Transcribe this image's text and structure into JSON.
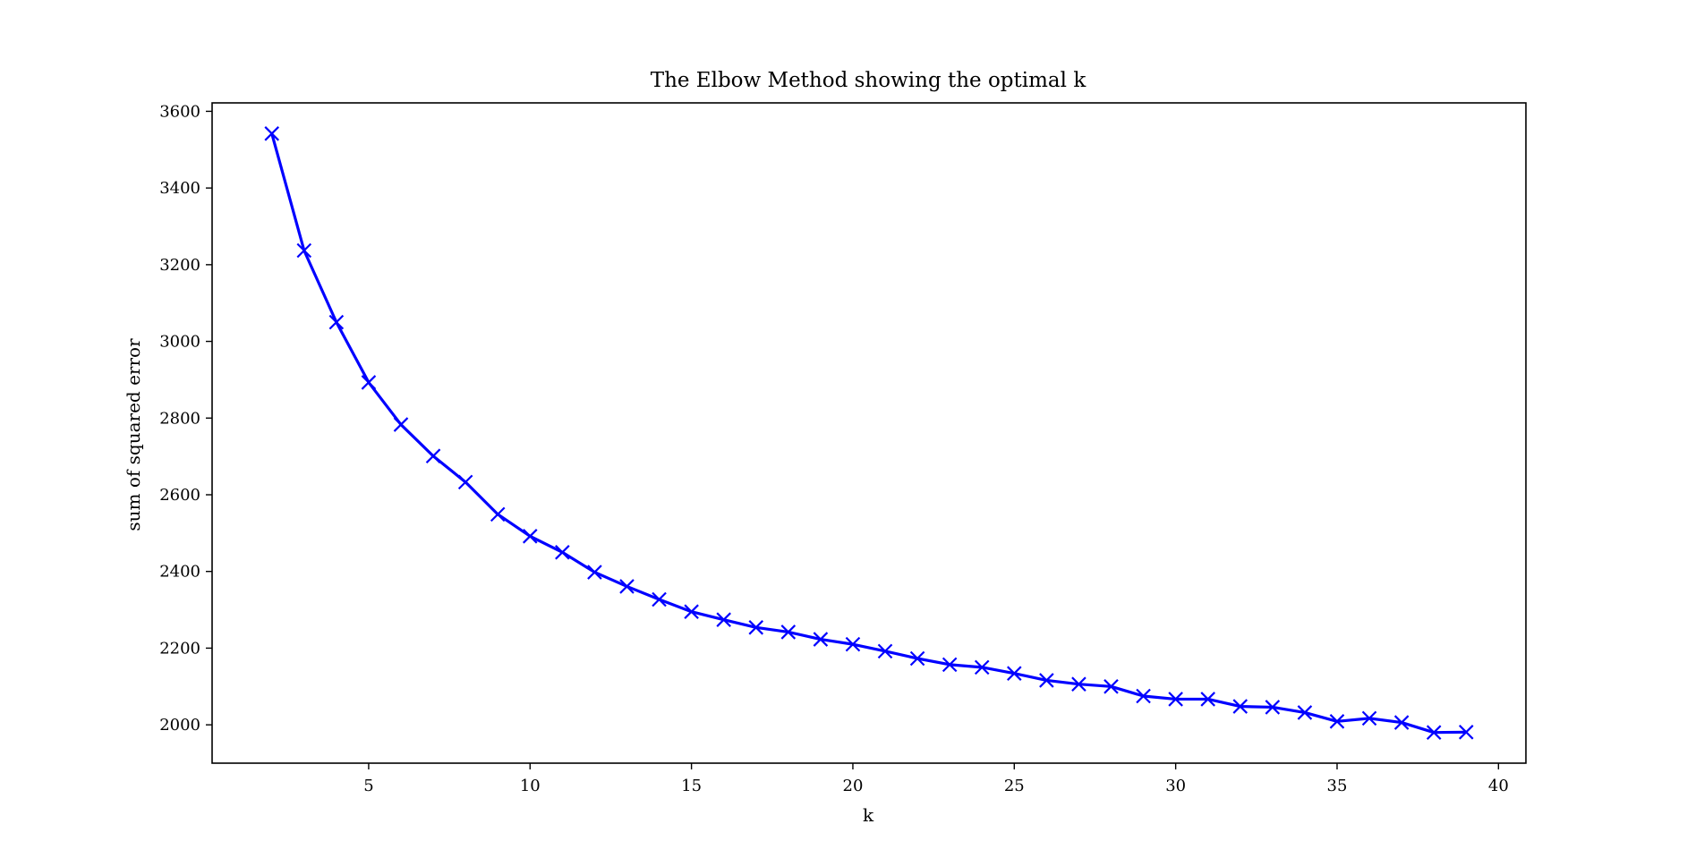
{
  "chart_data": {
    "type": "line",
    "title": "The Elbow Method showing the optimal k",
    "xlabel": "k",
    "ylabel": "sum of squared error",
    "xlim": [
      0.15,
      40.85
    ],
    "ylim": [
      1900,
      3622
    ],
    "xticks": [
      5,
      10,
      15,
      20,
      25,
      30,
      35,
      40
    ],
    "yticks": [
      2000,
      2200,
      2400,
      2600,
      2800,
      3000,
      3200,
      3400,
      3600
    ],
    "grid": false,
    "series": [
      {
        "color": "#0000ff",
        "marker": "x",
        "x": [
          2,
          3,
          4,
          5,
          6,
          7,
          8,
          9,
          10,
          11,
          12,
          13,
          14,
          15,
          16,
          17,
          18,
          19,
          20,
          21,
          22,
          23,
          24,
          25,
          26,
          27,
          28,
          29,
          30,
          31,
          32,
          33,
          34,
          35,
          36,
          37,
          38,
          39
        ],
        "y": [
          3542,
          3237,
          3050,
          2893,
          2783,
          2701,
          2633,
          2549,
          2492,
          2450,
          2398,
          2361,
          2327,
          2295,
          2274,
          2254,
          2242,
          2223,
          2210,
          2192,
          2173,
          2157,
          2150,
          2134,
          2116,
          2106,
          2100,
          2075,
          2067,
          2067,
          2048,
          2046,
          2032,
          2009,
          2017,
          2006,
          1980,
          1981
        ]
      }
    ]
  }
}
